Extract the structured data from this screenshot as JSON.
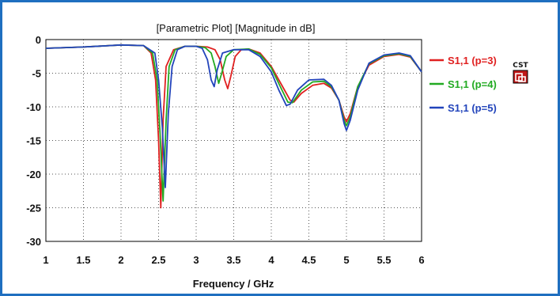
{
  "chart_data": {
    "type": "line",
    "title": "[Parametric Plot] [Magnitude in dB]",
    "xlabel": "Frequency / GHz",
    "ylabel": "",
    "xlim": [
      1,
      6
    ],
    "ylim": [
      -30,
      0
    ],
    "xticks": [
      "1",
      "1.5",
      "2",
      "2.5",
      "3",
      "3.5",
      "4",
      "4.5",
      "5",
      "5.5",
      "6"
    ],
    "yticks": [
      "0",
      "-5",
      "-10",
      "-15",
      "-20",
      "-25",
      "-30"
    ],
    "grid": true,
    "legend_position": "right",
    "series": [
      {
        "name": "S1,1 (p=3)",
        "color": "#e02020",
        "points": [
          [
            1,
            -1.3
          ],
          [
            1.5,
            -1.1
          ],
          [
            2,
            -0.8
          ],
          [
            2.3,
            -0.9
          ],
          [
            2.4,
            -2
          ],
          [
            2.46,
            -6
          ],
          [
            2.5,
            -15
          ],
          [
            2.53,
            -25
          ],
          [
            2.56,
            -12
          ],
          [
            2.6,
            -4
          ],
          [
            2.7,
            -1.5
          ],
          [
            2.85,
            -1
          ],
          [
            3.0,
            -1
          ],
          [
            3.15,
            -1.1
          ],
          [
            3.25,
            -1.5
          ],
          [
            3.32,
            -3
          ],
          [
            3.38,
            -6
          ],
          [
            3.42,
            -7.3
          ],
          [
            3.46,
            -5.5
          ],
          [
            3.52,
            -2.5
          ],
          [
            3.6,
            -1.5
          ],
          [
            3.7,
            -1.4
          ],
          [
            3.85,
            -2
          ],
          [
            4.0,
            -4
          ],
          [
            4.15,
            -7
          ],
          [
            4.25,
            -9
          ],
          [
            4.3,
            -9.3
          ],
          [
            4.4,
            -8
          ],
          [
            4.55,
            -6.8
          ],
          [
            4.7,
            -6.5
          ],
          [
            4.8,
            -7.2
          ],
          [
            4.9,
            -9
          ],
          [
            4.97,
            -11.5
          ],
          [
            5.0,
            -12.2
          ],
          [
            5.05,
            -11
          ],
          [
            5.15,
            -7
          ],
          [
            5.3,
            -3.8
          ],
          [
            5.5,
            -2.5
          ],
          [
            5.7,
            -2.2
          ],
          [
            5.85,
            -2.6
          ],
          [
            6.0,
            -4.8
          ]
        ]
      },
      {
        "name": "S1,1 (p=4)",
        "color": "#22aa22",
        "points": [
          [
            1,
            -1.3
          ],
          [
            1.5,
            -1.1
          ],
          [
            2,
            -0.8
          ],
          [
            2.3,
            -0.9
          ],
          [
            2.42,
            -2
          ],
          [
            2.48,
            -6
          ],
          [
            2.52,
            -14
          ],
          [
            2.56,
            -24
          ],
          [
            2.6,
            -12
          ],
          [
            2.64,
            -4
          ],
          [
            2.72,
            -1.5
          ],
          [
            2.85,
            -1
          ],
          [
            3.0,
            -1
          ],
          [
            3.12,
            -1.2
          ],
          [
            3.2,
            -2
          ],
          [
            3.25,
            -4
          ],
          [
            3.3,
            -6.5
          ],
          [
            3.34,
            -5
          ],
          [
            3.4,
            -2.5
          ],
          [
            3.5,
            -1.5
          ],
          [
            3.7,
            -1.4
          ],
          [
            3.85,
            -2.2
          ],
          [
            4.0,
            -4.2
          ],
          [
            4.12,
            -7
          ],
          [
            4.22,
            -9.3
          ],
          [
            4.28,
            -9.4
          ],
          [
            4.4,
            -7.5
          ],
          [
            4.55,
            -6.3
          ],
          [
            4.7,
            -6.2
          ],
          [
            4.8,
            -7
          ],
          [
            4.9,
            -9
          ],
          [
            4.97,
            -12
          ],
          [
            5.0,
            -12.8
          ],
          [
            5.05,
            -11.5
          ],
          [
            5.15,
            -7
          ],
          [
            5.3,
            -3.6
          ],
          [
            5.5,
            -2.4
          ],
          [
            5.7,
            -2.1
          ],
          [
            5.85,
            -2.5
          ],
          [
            6.0,
            -4.8
          ]
        ]
      },
      {
        "name": "S1,1 (p=5)",
        "color": "#2244bb",
        "points": [
          [
            1,
            -1.3
          ],
          [
            1.5,
            -1.1
          ],
          [
            2,
            -0.8
          ],
          [
            2.3,
            -0.9
          ],
          [
            2.45,
            -2
          ],
          [
            2.5,
            -6
          ],
          [
            2.55,
            -13
          ],
          [
            2.59,
            -22
          ],
          [
            2.63,
            -11
          ],
          [
            2.68,
            -4
          ],
          [
            2.75,
            -1.5
          ],
          [
            2.85,
            -1
          ],
          [
            3.0,
            -1
          ],
          [
            3.08,
            -1.3
          ],
          [
            3.15,
            -3
          ],
          [
            3.2,
            -6
          ],
          [
            3.24,
            -7
          ],
          [
            3.28,
            -4.5
          ],
          [
            3.35,
            -2
          ],
          [
            3.5,
            -1.5
          ],
          [
            3.7,
            -1.5
          ],
          [
            3.85,
            -2.5
          ],
          [
            4.0,
            -4.8
          ],
          [
            4.1,
            -7.5
          ],
          [
            4.2,
            -9.8
          ],
          [
            4.25,
            -9.6
          ],
          [
            4.35,
            -7.5
          ],
          [
            4.5,
            -6
          ],
          [
            4.7,
            -5.9
          ],
          [
            4.8,
            -6.8
          ],
          [
            4.9,
            -9
          ],
          [
            4.97,
            -12.5
          ],
          [
            5.0,
            -13.5
          ],
          [
            5.05,
            -12
          ],
          [
            5.15,
            -7.5
          ],
          [
            5.3,
            -3.5
          ],
          [
            5.5,
            -2.3
          ],
          [
            5.7,
            -2.0
          ],
          [
            5.85,
            -2.4
          ],
          [
            6.0,
            -4.8
          ]
        ]
      }
    ]
  },
  "logo": {
    "text": "CST",
    "icon": "cst-logo-icon"
  }
}
